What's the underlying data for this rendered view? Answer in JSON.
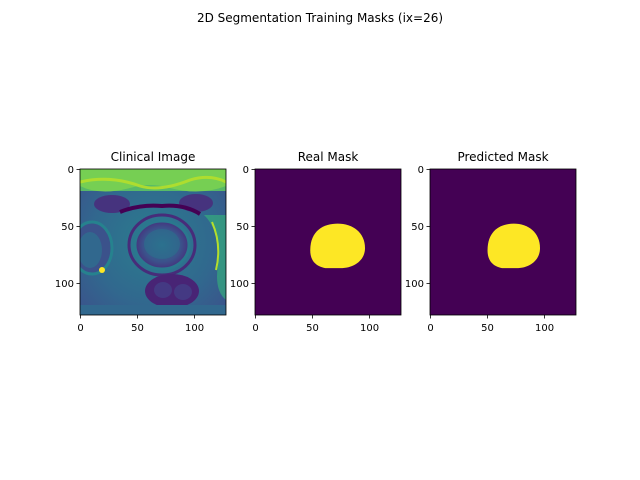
{
  "figure": {
    "suptitle": "2D Segmentation Training Masks (ix=26)"
  },
  "chart_data": [
    {
      "type": "heatmap",
      "title": "Clinical Image",
      "image_size": [
        128,
        128
      ],
      "xlim": [
        0,
        128
      ],
      "ylim": [
        128,
        0
      ],
      "xticks": [
        0,
        50,
        100
      ],
      "yticks": [
        0,
        50,
        100
      ],
      "colormap": "viridis",
      "content": "axial prostate MRI slice"
    },
    {
      "type": "heatmap",
      "title": "Real Mask",
      "image_size": [
        128,
        128
      ],
      "xlim": [
        0,
        128
      ],
      "ylim": [
        128,
        0
      ],
      "xticks": [
        0,
        50,
        100
      ],
      "yticks": [
        0,
        50,
        100
      ],
      "colormap": "viridis",
      "background_color": "#440154",
      "mask_color": "#fde725",
      "mask_region": {
        "center_x": 72,
        "center_y": 67,
        "x_range": [
          48,
          96
        ],
        "y_range": [
          48,
          87
        ]
      }
    },
    {
      "type": "heatmap",
      "title": "Predicted Mask",
      "image_size": [
        128,
        128
      ],
      "xlim": [
        0,
        128
      ],
      "ylim": [
        128,
        0
      ],
      "xticks": [
        0,
        50,
        100
      ],
      "yticks": [
        0,
        50,
        100
      ],
      "colormap": "viridis",
      "background_color": "#440154",
      "mask_color": "#fde725",
      "mask_region": {
        "center_x": 73,
        "center_y": 67,
        "x_range": [
          50,
          96
        ],
        "y_range": [
          48,
          87
        ]
      }
    }
  ]
}
